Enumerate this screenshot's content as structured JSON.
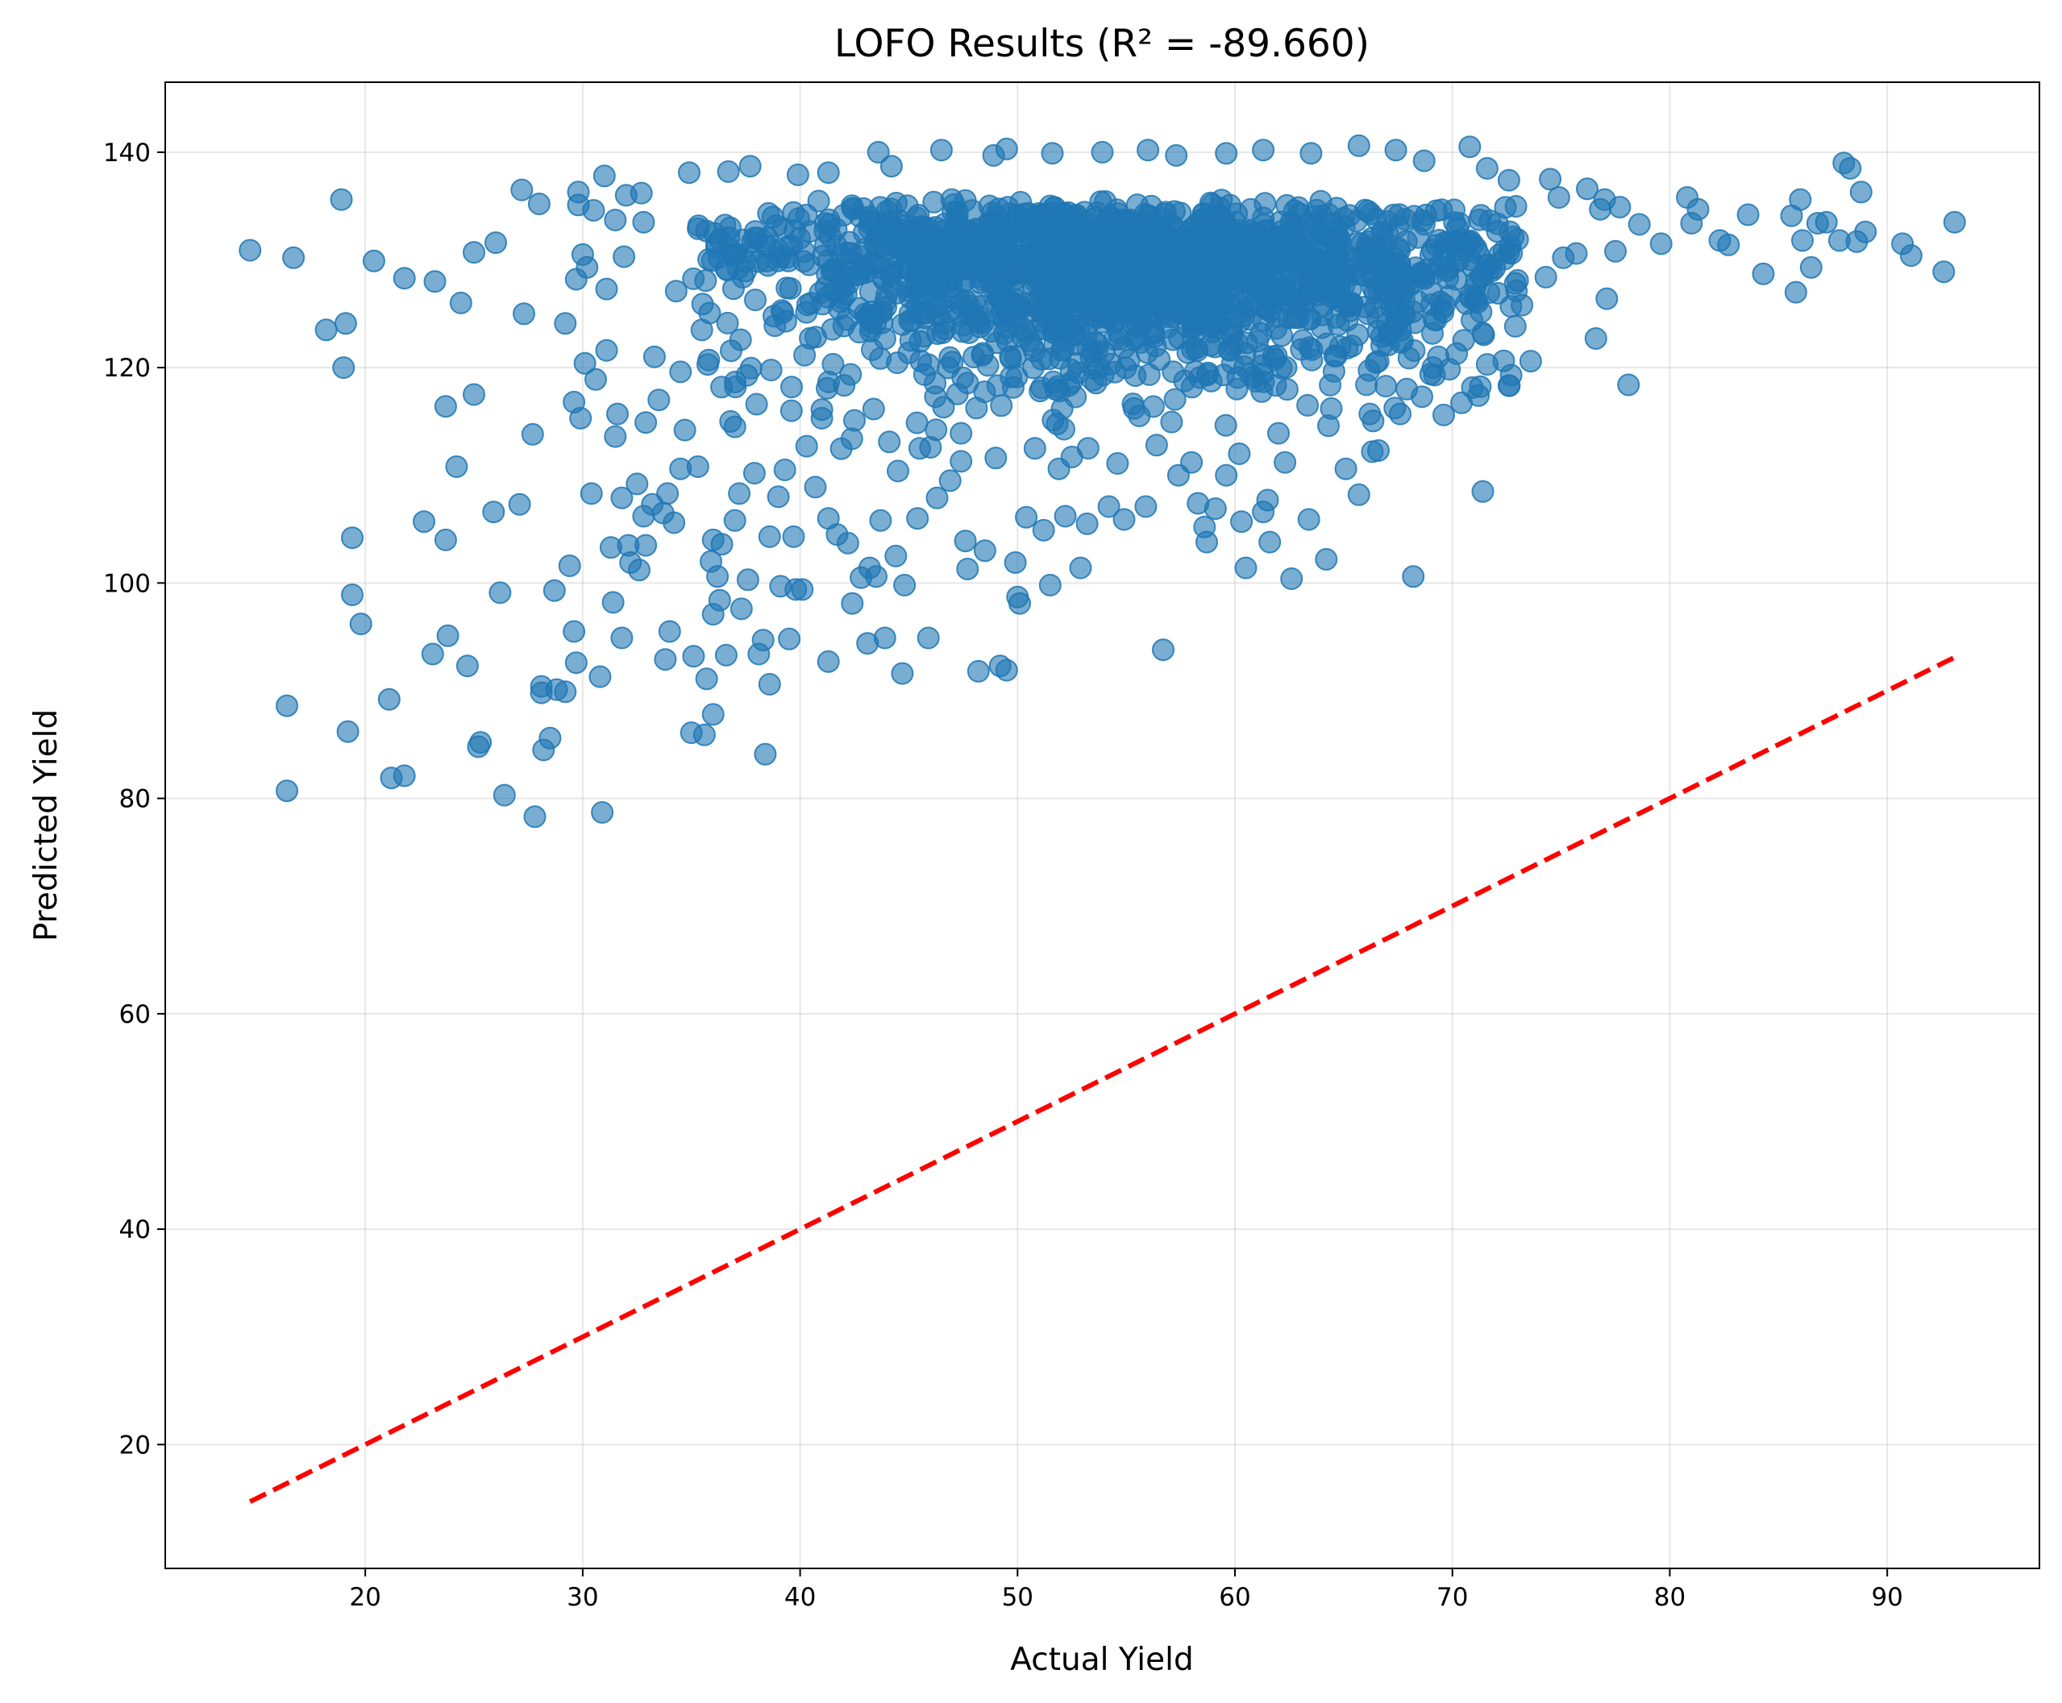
{
  "chart_data": {
    "type": "scatter",
    "title": "LOFO  Results (R² = -89.660)",
    "xlabel": "Actual Yield",
    "ylabel": "Predicted Yield",
    "xlim": [
      10.8,
      97.0
    ],
    "ylim": [
      8.5,
      146.5
    ],
    "xticks": [
      20,
      30,
      40,
      50,
      60,
      70,
      80,
      90
    ],
    "yticks": [
      20,
      40,
      60,
      80,
      100,
      120,
      140
    ],
    "grid": true,
    "legend": "none",
    "point_color": "#1f77b4",
    "point_alpha": 0.6,
    "reference_line": {
      "x": [
        14.7,
        93.1
      ],
      "y": [
        14.7,
        93.1
      ],
      "color": "#ff0000",
      "style": "dashed"
    },
    "series": [
      {
        "points": [
          [
            14.7,
            130.9
          ],
          [
            16.7,
            130.2
          ],
          [
            18.2,
            123.5
          ],
          [
            18.9,
            135.6
          ],
          [
            19.1,
            124.1
          ],
          [
            19.0,
            120.0
          ],
          [
            16.4,
            88.6
          ],
          [
            16.4,
            80.7
          ],
          [
            19.2,
            86.2
          ],
          [
            19.4,
            98.9
          ],
          [
            19.4,
            104.2
          ],
          [
            19.8,
            96.2
          ],
          [
            20.4,
            129.9
          ],
          [
            21.1,
            89.2
          ],
          [
            21.2,
            81.9
          ],
          [
            21.8,
            82.1
          ],
          [
            21.8,
            128.3
          ],
          [
            22.7,
            105.7
          ],
          [
            23.1,
            93.4
          ],
          [
            23.2,
            128.0
          ],
          [
            23.7,
            116.4
          ],
          [
            23.7,
            104.0
          ],
          [
            23.8,
            95.1
          ],
          [
            24.2,
            110.8
          ],
          [
            24.4,
            126.0
          ],
          [
            24.7,
            92.3
          ],
          [
            25.0,
            117.5
          ],
          [
            25.0,
            130.7
          ],
          [
            25.2,
            84.8
          ],
          [
            25.3,
            85.2
          ],
          [
            25.9,
            106.6
          ],
          [
            26.0,
            131.6
          ],
          [
            26.2,
            99.1
          ],
          [
            26.4,
            80.3
          ],
          [
            27.1,
            107.3
          ],
          [
            27.2,
            136.5
          ],
          [
            27.3,
            125.0
          ],
          [
            27.7,
            113.8
          ],
          [
            27.8,
            78.3
          ],
          [
            28.0,
            135.2
          ],
          [
            28.1,
            90.4
          ],
          [
            28.1,
            89.8
          ],
          [
            28.2,
            84.5
          ],
          [
            28.5,
            85.6
          ],
          [
            28.7,
            99.3
          ],
          [
            28.8,
            90.1
          ],
          [
            29.2,
            89.9
          ],
          [
            29.2,
            124.1
          ],
          [
            29.4,
            101.6
          ],
          [
            29.6,
            95.5
          ],
          [
            29.6,
            116.8
          ],
          [
            29.7,
            92.6
          ],
          [
            29.7,
            128.2
          ],
          [
            29.8,
            135.1
          ],
          [
            29.8,
            136.3
          ],
          [
            29.9,
            115.3
          ],
          [
            30.0,
            130.5
          ],
          [
            30.1,
            120.4
          ],
          [
            30.2,
            129.3
          ],
          [
            30.4,
            108.3
          ],
          [
            30.5,
            134.6
          ],
          [
            30.6,
            118.9
          ],
          [
            30.8,
            91.3
          ],
          [
            30.9,
            78.7
          ],
          [
            31.0,
            137.8
          ],
          [
            31.1,
            121.6
          ],
          [
            31.1,
            127.3
          ],
          [
            31.3,
            103.3
          ],
          [
            31.4,
            98.2
          ],
          [
            31.5,
            133.7
          ],
          [
            31.5,
            113.6
          ],
          [
            31.6,
            115.7
          ],
          [
            31.8,
            107.9
          ],
          [
            31.8,
            94.9
          ],
          [
            31.9,
            130.3
          ],
          [
            32.0,
            136.0
          ],
          [
            32.1,
            103.5
          ],
          [
            32.2,
            101.9
          ],
          [
            32.5,
            109.2
          ],
          [
            32.6,
            101.2
          ],
          [
            32.7,
            136.2
          ],
          [
            32.8,
            133.5
          ],
          [
            32.8,
            106.2
          ],
          [
            32.9,
            103.5
          ],
          [
            32.9,
            114.9
          ],
          [
            33.2,
            107.3
          ],
          [
            33.3,
            121.0
          ],
          [
            33.5,
            117.0
          ],
          [
            33.7,
            106.5
          ],
          [
            33.8,
            92.9
          ],
          [
            33.9,
            108.3
          ],
          [
            34.0,
            95.5
          ],
          [
            34.2,
            105.6
          ],
          [
            34.3,
            127.1
          ],
          [
            34.5,
            110.6
          ],
          [
            34.5,
            119.6
          ],
          [
            34.7,
            114.2
          ],
          [
            34.9,
            138.1
          ],
          [
            35.0,
            86.1
          ],
          [
            35.1,
            93.2
          ],
          [
            35.3,
            110.8
          ],
          [
            35.6,
            85.9
          ],
          [
            35.7,
            91.1
          ],
          [
            35.8,
            120.7
          ],
          [
            35.9,
            102.0
          ],
          [
            36.0,
            97.1
          ],
          [
            36.0,
            104.0
          ],
          [
            36.0,
            87.8
          ],
          [
            36.2,
            100.6
          ],
          [
            36.3,
            98.4
          ],
          [
            36.4,
            103.6
          ],
          [
            36.6,
            93.3
          ],
          [
            36.8,
            115.0
          ],
          [
            37.0,
            105.8
          ],
          [
            37.2,
            108.3
          ],
          [
            37.3,
            97.6
          ],
          [
            37.6,
            100.3
          ],
          [
            37.9,
            110.2
          ],
          [
            38.1,
            93.4
          ],
          [
            38.3,
            94.7
          ],
          [
            38.4,
            84.1
          ],
          [
            38.6,
            90.6
          ],
          [
            38.6,
            104.3
          ],
          [
            39.0,
            108.0
          ],
          [
            39.1,
            99.7
          ],
          [
            39.3,
            110.5
          ],
          [
            39.5,
            94.8
          ],
          [
            39.7,
            104.3
          ],
          [
            39.8,
            99.4
          ],
          [
            40.1,
            99.4
          ],
          [
            40.3,
            112.7
          ],
          [
            40.7,
            108.9
          ],
          [
            41.0,
            115.3
          ],
          [
            41.3,
            92.7
          ],
          [
            41.3,
            106.0
          ],
          [
            41.7,
            104.5
          ],
          [
            42.2,
            103.7
          ],
          [
            42.4,
            98.1
          ],
          [
            42.8,
            100.5
          ],
          [
            43.1,
            94.4
          ],
          [
            43.2,
            101.4
          ],
          [
            43.5,
            100.6
          ],
          [
            43.7,
            105.8
          ],
          [
            43.9,
            94.9
          ],
          [
            44.4,
            102.5
          ],
          [
            44.5,
            110.4
          ],
          [
            44.7,
            91.6
          ],
          [
            44.8,
            99.8
          ],
          [
            45.4,
            106.0
          ],
          [
            45.5,
            112.5
          ],
          [
            45.9,
            94.9
          ],
          [
            46.3,
            107.9
          ],
          [
            46.9,
            109.5
          ],
          [
            47.4,
            111.3
          ],
          [
            47.6,
            103.9
          ],
          [
            47.7,
            101.3
          ],
          [
            48.2,
            91.8
          ],
          [
            48.5,
            103.0
          ],
          [
            49.2,
            92.3
          ],
          [
            49.5,
            91.9
          ],
          [
            49.9,
            101.9
          ],
          [
            50.0,
            98.7
          ],
          [
            50.1,
            98.1
          ],
          [
            50.4,
            106.1
          ],
          [
            51.2,
            104.9
          ],
          [
            51.5,
            99.8
          ],
          [
            51.9,
            110.6
          ],
          [
            52.2,
            106.2
          ],
          [
            52.9,
            101.4
          ],
          [
            53.2,
            105.5
          ],
          [
            54.2,
            107.1
          ],
          [
            54.9,
            105.9
          ],
          [
            55.9,
            107.1
          ],
          [
            56.7,
            93.8
          ],
          [
            57.4,
            110.0
          ],
          [
            58.3,
            107.4
          ],
          [
            58.6,
            105.2
          ],
          [
            58.7,
            103.8
          ],
          [
            59.1,
            106.9
          ],
          [
            59.6,
            110.0
          ],
          [
            60.3,
            105.7
          ],
          [
            60.5,
            101.4
          ],
          [
            61.3,
            106.6
          ],
          [
            61.6,
            103.8
          ],
          [
            61.5,
            107.7
          ],
          [
            62.3,
            111.2
          ],
          [
            62.6,
            100.4
          ],
          [
            63.4,
            105.9
          ],
          [
            64.2,
            102.2
          ],
          [
            65.1,
            110.6
          ],
          [
            65.7,
            108.2
          ],
          [
            66.6,
            112.3
          ],
          [
            67.6,
            115.7
          ],
          [
            68.2,
            100.6
          ],
          [
            68.6,
            117.3
          ],
          [
            69.6,
            115.6
          ],
          [
            71.2,
            117.4
          ],
          [
            71.4,
            108.5
          ],
          [
            71.4,
            123.2
          ],
          [
            71.6,
            120.3
          ],
          [
            72.7,
            119.3
          ],
          [
            73.0,
            128.1
          ],
          [
            73.2,
            125.8
          ],
          [
            73.6,
            120.6
          ],
          [
            74.3,
            128.4
          ],
          [
            74.5,
            137.5
          ],
          [
            75.1,
            130.2
          ],
          [
            75.7,
            130.6
          ],
          [
            76.2,
            136.6
          ],
          [
            76.6,
            122.7
          ],
          [
            77.0,
            135.6
          ],
          [
            77.1,
            126.4
          ],
          [
            77.5,
            130.8
          ],
          [
            77.7,
            134.9
          ],
          [
            78.1,
            118.4
          ],
          [
            78.6,
            133.3
          ],
          [
            79.6,
            131.5
          ],
          [
            80.8,
            135.8
          ],
          [
            81.0,
            133.4
          ],
          [
            81.3,
            134.7
          ],
          [
            82.3,
            131.8
          ],
          [
            82.7,
            131.4
          ],
          [
            83.6,
            134.2
          ],
          [
            84.3,
            128.7
          ],
          [
            85.6,
            134.1
          ],
          [
            85.8,
            127.0
          ],
          [
            86.0,
            135.6
          ],
          [
            86.1,
            131.8
          ],
          [
            86.5,
            129.3
          ],
          [
            86.8,
            133.4
          ],
          [
            87.2,
            133.5
          ],
          [
            87.8,
            131.8
          ],
          [
            88.0,
            139.0
          ],
          [
            88.3,
            138.5
          ],
          [
            88.6,
            131.7
          ],
          [
            88.8,
            136.3
          ],
          [
            89.0,
            132.6
          ],
          [
            90.7,
            131.5
          ],
          [
            91.1,
            130.4
          ],
          [
            92.6,
            128.9
          ],
          [
            93.1,
            133.5
          ],
          [
            36.7,
            138.2
          ],
          [
            37.7,
            138.7
          ],
          [
            39.9,
            137.9
          ],
          [
            41.3,
            138.1
          ],
          [
            43.6,
            140.0
          ],
          [
            44.2,
            138.7
          ],
          [
            46.5,
            140.2
          ],
          [
            48.9,
            139.7
          ],
          [
            49.5,
            140.3
          ],
          [
            51.6,
            139.9
          ],
          [
            53.9,
            140.0
          ],
          [
            56.0,
            140.2
          ],
          [
            57.3,
            139.7
          ],
          [
            59.6,
            139.9
          ],
          [
            61.3,
            140.2
          ],
          [
            63.5,
            139.9
          ],
          [
            65.7,
            140.6
          ],
          [
            67.4,
            140.2
          ],
          [
            68.7,
            139.2
          ],
          [
            70.8,
            140.5
          ],
          [
            71.6,
            138.5
          ],
          [
            72.6,
            137.4
          ],
          [
            74.9,
            135.8
          ],
          [
            76.8,
            134.7
          ],
          [
            37.0,
            114.5
          ],
          [
            38.0,
            116.6
          ],
          [
            39.6,
            116.0
          ],
          [
            41.0,
            116.1
          ],
          [
            42.5,
            115.1
          ],
          [
            44.1,
            113.1
          ],
          [
            46.0,
            112.6
          ],
          [
            47.4,
            113.9
          ],
          [
            49.0,
            111.6
          ],
          [
            50.8,
            112.5
          ],
          [
            52.5,
            111.7
          ],
          [
            54.6,
            111.1
          ],
          [
            56.4,
            112.8
          ],
          [
            58.0,
            111.2
          ],
          [
            60.2,
            112.0
          ],
          [
            62.0,
            113.9
          ],
          [
            64.3,
            114.6
          ],
          [
            66.2,
            115.7
          ],
          [
            67.9,
            118.0
          ],
          [
            69.0,
            119.4
          ],
          [
            70.2,
            121.3
          ],
          [
            70.9,
            124.4
          ],
          [
            72.1,
            126.9
          ],
          [
            73.0,
            131.9
          ]
        ]
      }
    ]
  }
}
